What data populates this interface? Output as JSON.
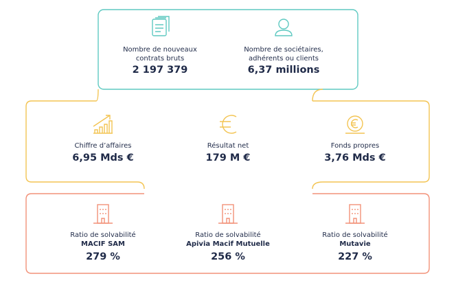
{
  "top": {
    "items": [
      {
        "label": [
          "Nombre de nouveaux",
          "contrats bruts"
        ],
        "value": "2 197 379"
      },
      {
        "label": [
          "Nombre de sociétaires,",
          "adhérents ou clients"
        ],
        "value": "6,37 millions"
      }
    ]
  },
  "middle": {
    "items": [
      {
        "label": "Chiffre d’affaires",
        "value": "6,95 Mds €"
      },
      {
        "label": "Résultat net",
        "value": "179 M €"
      },
      {
        "label": "Fonds propres",
        "value": "3,76 Mds €"
      }
    ]
  },
  "bottom": {
    "items": [
      {
        "label": "Ratio de solvabilité",
        "entity": "MACIF SAM",
        "value": "279 %"
      },
      {
        "label": "Ratio de solvabilité",
        "entity": "Apivia Macif Mutuelle",
        "value": "256 %"
      },
      {
        "label": "Ratio de solvabilité",
        "entity": "Mutavie",
        "value": "227 %"
      }
    ]
  }
}
